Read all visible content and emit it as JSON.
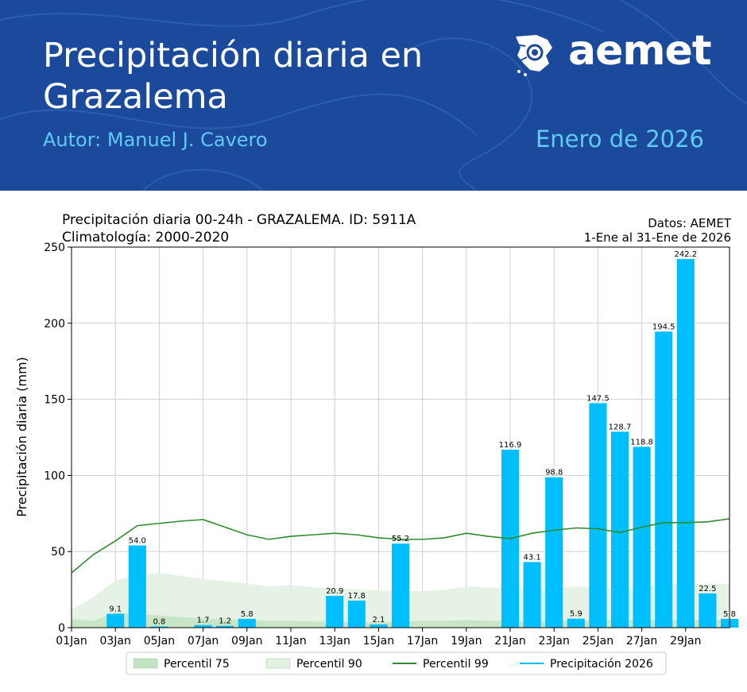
{
  "header": {
    "title_line1": "Precipitación diaria en",
    "title_line2": "Grazalema",
    "author": "Autor: Manuel J. Cavero",
    "period": "Enero de 2026",
    "brand": "aemet",
    "background_color": "#1b4a9c",
    "accent_color": "#61c9f5",
    "logo_icon": "aemet-logo-icon"
  },
  "chart_data": {
    "type": "bar",
    "title_left_line1": "Precipitación diaria 00-24h - GRAZALEMA. ID: 5911A",
    "title_left_line2": "Climatología: 2000-2020",
    "title_right_line1": "Datos: AEMET",
    "title_right_line2": "1-Ene al 31-Ene de 2026",
    "ylabel": "Precipitación diaria (mm)",
    "ylim": [
      0,
      250
    ],
    "yticks": [
      0,
      50,
      100,
      150,
      200,
      250
    ],
    "xlim": [
      1,
      31
    ],
    "xticks": [
      1,
      3,
      5,
      7,
      9,
      11,
      13,
      15,
      17,
      19,
      21,
      23,
      25,
      27,
      29
    ],
    "xtick_labels": [
      "01Jan",
      "03Jan",
      "05Jan",
      "07Jan",
      "09Jan",
      "11Jan",
      "13Jan",
      "15Jan",
      "17Jan",
      "19Jan",
      "21Jan",
      "23Jan",
      "25Jan",
      "27Jan",
      "29Jan"
    ],
    "grid": true,
    "legend_position": "bottom",
    "bar_color": "#00bfff",
    "precipitation": [
      {
        "day": 3,
        "value": 9.1,
        "label": "9.1"
      },
      {
        "day": 4,
        "value": 54.0,
        "label": "54.0"
      },
      {
        "day": 5,
        "value": 0.8,
        "label": "0.8"
      },
      {
        "day": 7,
        "value": 1.7,
        "label": "1.7"
      },
      {
        "day": 8,
        "value": 1.2,
        "label": "1.2"
      },
      {
        "day": 9,
        "value": 5.8,
        "label": "5.8"
      },
      {
        "day": 13,
        "value": 20.9,
        "label": "20.9"
      },
      {
        "day": 14,
        "value": 17.8,
        "label": "17.8"
      },
      {
        "day": 15,
        "value": 2.1,
        "label": "2.1"
      },
      {
        "day": 16,
        "value": 55.2,
        "label": "55.2"
      },
      {
        "day": 21,
        "value": 116.9,
        "label": "116.9"
      },
      {
        "day": 22,
        "value": 43.1,
        "label": "43.1"
      },
      {
        "day": 23,
        "value": 98.8,
        "label": "98.8"
      },
      {
        "day": 24,
        "value": 5.9,
        "label": "5.9"
      },
      {
        "day": 25,
        "value": 147.5,
        "label": "147.5"
      },
      {
        "day": 26,
        "value": 128.7,
        "label": "128.7"
      },
      {
        "day": 27,
        "value": 118.8,
        "label": "118.8"
      },
      {
        "day": 28,
        "value": 194.5,
        "label": "194.5"
      },
      {
        "day": 29,
        "value": 242.2,
        "label": "242.2"
      },
      {
        "day": 30,
        "value": 22.5,
        "label": "22.5"
      },
      {
        "day": 31,
        "value": 5.8,
        "label": "5.8"
      }
    ],
    "percentile_99": {
      "x": [
        1,
        2,
        3,
        4,
        5,
        6,
        7,
        8,
        9,
        10,
        11,
        12,
        13,
        14,
        15,
        16,
        17,
        18,
        19,
        20,
        21,
        22,
        23,
        24,
        25,
        26,
        27,
        28,
        29,
        30,
        31
      ],
      "y": [
        36,
        48,
        57,
        67,
        68.5,
        70,
        71,
        66,
        61,
        58,
        60,
        61,
        62,
        61,
        59,
        58,
        58,
        59,
        62,
        60,
        58.5,
        62,
        64,
        65.5,
        65,
        62.5,
        66,
        69,
        69,
        69.5,
        71.5
      ],
      "color": "#2e8b2e"
    },
    "percentile_90": {
      "x": [
        1,
        2,
        3,
        4,
        5,
        6,
        7,
        8,
        9,
        10,
        11,
        12,
        13,
        14,
        15,
        16,
        17,
        18,
        19,
        20,
        21,
        22,
        23,
        24,
        25,
        26,
        27,
        28,
        29,
        30,
        31
      ],
      "y": [
        12,
        20,
        31,
        34.5,
        36,
        34,
        32,
        30.5,
        29,
        27,
        28,
        26.5,
        26,
        25,
        24.5,
        24,
        24,
        25,
        27,
        26.5,
        26,
        25.5,
        26,
        27,
        26.5,
        26,
        27,
        28,
        28.5,
        29,
        28.5
      ],
      "color": "#e3f1e3"
    },
    "percentile_75": {
      "x": [
        1,
        2,
        3,
        4,
        5,
        6,
        7,
        8,
        9,
        10,
        11,
        12,
        13,
        14,
        15,
        16,
        17,
        18,
        19,
        20,
        21,
        22,
        23,
        24,
        25,
        26,
        27,
        28,
        29,
        30,
        31
      ],
      "y": [
        5.5,
        4.5,
        10,
        9,
        8,
        7,
        6,
        5.5,
        5,
        4.5,
        4.5,
        4,
        4,
        3.5,
        3.5,
        4,
        4.5,
        4.5,
        5,
        4.5,
        4.5,
        4.5,
        4.5,
        4.5,
        4.5,
        5,
        5,
        5,
        5,
        5,
        5
      ],
      "color": "#c4e3c4"
    },
    "legend": [
      {
        "label": "Percentil 75",
        "kind": "patch",
        "color": "#c4e3c4"
      },
      {
        "label": "Percentil 90",
        "kind": "patch",
        "color": "#e3f1e3"
      },
      {
        "label": "Percentil 99",
        "kind": "line",
        "color": "#2e8b2e"
      },
      {
        "label": "Precipitación 2026",
        "kind": "line",
        "color": "#00bfff"
      }
    ]
  }
}
